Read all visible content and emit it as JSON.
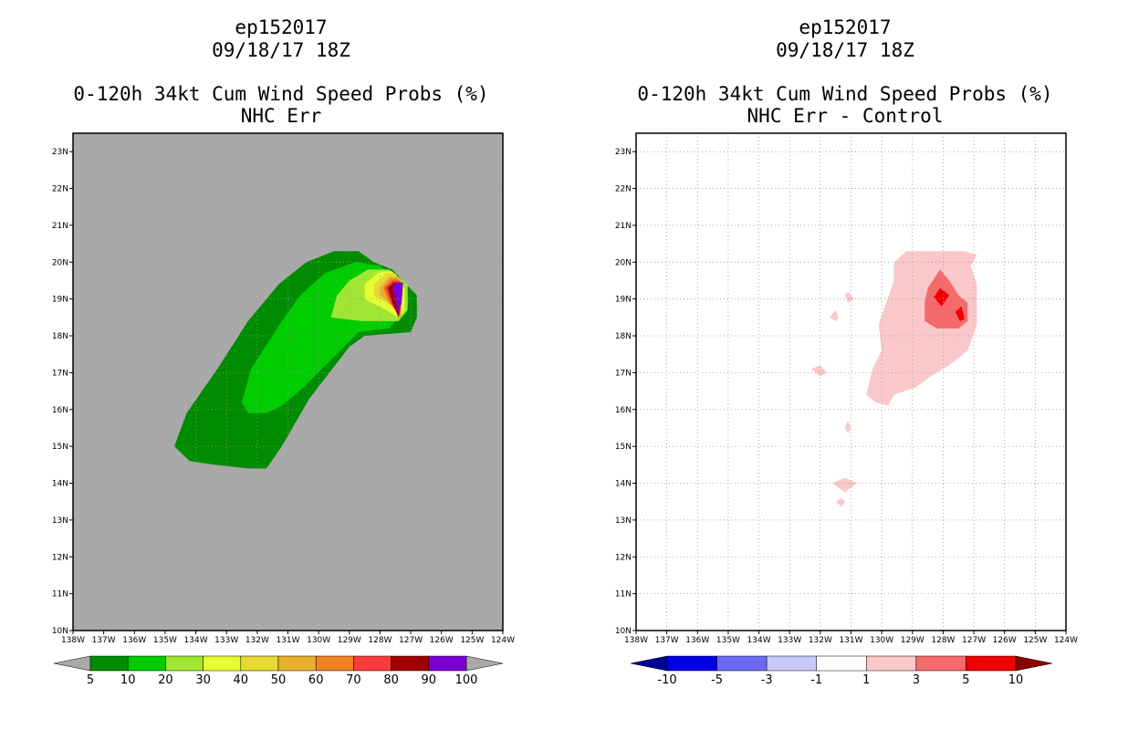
{
  "chart_data": [
    {
      "type": "heatmap",
      "storm_id": "ep152017",
      "datetime": "09/18/17 18Z",
      "title": "0-120h 34kt Cum Wind Speed Probs (%)",
      "subtitle": "NHC Err",
      "xlim": [
        -138,
        -124
      ],
      "ylim": [
        10,
        23.5
      ],
      "x_ticks": [
        "138W",
        "137W",
        "136W",
        "135W",
        "134W",
        "133W",
        "132W",
        "131W",
        "130W",
        "129W",
        "128W",
        "127W",
        "126W",
        "125W",
        "124W"
      ],
      "y_ticks": [
        "10N",
        "11N",
        "12N",
        "13N",
        "14N",
        "15N",
        "16N",
        "17N",
        "18N",
        "19N",
        "20N",
        "21N",
        "22N",
        "23N"
      ],
      "background": "#a9a9a9",
      "grid": true,
      "colorbar": {
        "labels": [
          "5",
          "10",
          "20",
          "30",
          "40",
          "50",
          "60",
          "70",
          "80",
          "90",
          "100"
        ],
        "colors": [
          "#008c00",
          "#00cc00",
          "#a0e632",
          "#e6ff33",
          "#e6d933",
          "#e6af2d",
          "#f08228",
          "#fa3c3c",
          "#a00000",
          "#7a00d4"
        ],
        "under": "#a9a9a9",
        "over": "#a9a9a9"
      },
      "contours": [
        {
          "level": 5,
          "color": "#008c00",
          "points": [
            [
              -134.7,
              15.0
            ],
            [
              -134.3,
              15.9
            ],
            [
              -133.3,
              17.1
            ],
            [
              -132.3,
              18.4
            ],
            [
              -131.3,
              19.4
            ],
            [
              -130.4,
              20.0
            ],
            [
              -129.5,
              20.3
            ],
            [
              -128.7,
              20.3
            ],
            [
              -128.2,
              20.0
            ],
            [
              -127.6,
              19.8
            ],
            [
              -126.8,
              19.1
            ],
            [
              -126.8,
              18.5
            ],
            [
              -127.0,
              18.1
            ],
            [
              -128.5,
              18.0
            ],
            [
              -129.0,
              17.7
            ],
            [
              -130.3,
              16.3
            ],
            [
              -131.2,
              15.0
            ],
            [
              -131.7,
              14.4
            ],
            [
              -132.3,
              14.4
            ],
            [
              -133.4,
              14.5
            ],
            [
              -134.2,
              14.6
            ]
          ]
        },
        {
          "level": 10,
          "color": "#00cc00",
          "points": [
            [
              -132.5,
              16.2
            ],
            [
              -132.2,
              17.1
            ],
            [
              -131.2,
              18.4
            ],
            [
              -130.6,
              19.1
            ],
            [
              -129.8,
              19.7
            ],
            [
              -128.8,
              20.0
            ],
            [
              -128.0,
              19.9
            ],
            [
              -127.3,
              19.4
            ],
            [
              -127.2,
              18.7
            ],
            [
              -127.7,
              18.2
            ],
            [
              -128.7,
              18.1
            ],
            [
              -129.3,
              17.6
            ],
            [
              -130.5,
              16.6
            ],
            [
              -131.2,
              16.1
            ],
            [
              -131.7,
              15.9
            ],
            [
              -132.3,
              15.9
            ]
          ]
        },
        {
          "level": 20,
          "color": "#a0e632",
          "points": [
            [
              -129.6,
              18.5
            ],
            [
              -129.4,
              19.1
            ],
            [
              -129.0,
              19.5
            ],
            [
              -128.4,
              19.8
            ],
            [
              -127.7,
              19.8
            ],
            [
              -127.1,
              19.4
            ],
            [
              -127.1,
              18.7
            ],
            [
              -127.4,
              18.4
            ],
            [
              -128.6,
              18.4
            ]
          ]
        },
        {
          "level": 30,
          "color": "#e6ff33",
          "points": [
            [
              -128.5,
              19.4
            ],
            [
              -128.0,
              19.75
            ],
            [
              -127.6,
              19.75
            ],
            [
              -127.2,
              19.3
            ],
            [
              -127.2,
              18.7
            ],
            [
              -127.4,
              18.5
            ],
            [
              -127.8,
              18.7
            ],
            [
              -128.5,
              19.0
            ]
          ]
        },
        {
          "level": 40,
          "color": "#e6d933",
          "points": [
            [
              -128.2,
              19.4
            ],
            [
              -127.8,
              19.7
            ],
            [
              -127.5,
              19.7
            ],
            [
              -127.25,
              19.3
            ],
            [
              -127.3,
              18.6
            ],
            [
              -127.6,
              18.8
            ],
            [
              -128.2,
              19.1
            ]
          ]
        },
        {
          "level": 50,
          "color": "#e6af2d",
          "points": [
            [
              -128.0,
              19.3
            ],
            [
              -127.7,
              19.6
            ],
            [
              -127.45,
              19.6
            ],
            [
              -127.3,
              19.2
            ],
            [
              -127.35,
              18.6
            ],
            [
              -127.7,
              18.9
            ],
            [
              -128.0,
              19.1
            ]
          ]
        },
        {
          "level": 60,
          "color": "#f08228",
          "points": [
            [
              -127.9,
              19.3
            ],
            [
              -127.65,
              19.55
            ],
            [
              -127.4,
              19.55
            ],
            [
              -127.3,
              19.15
            ],
            [
              -127.35,
              18.55
            ],
            [
              -127.7,
              18.9
            ]
          ]
        },
        {
          "level": 70,
          "color": "#fa3c3c",
          "points": [
            [
              -127.85,
              19.3
            ],
            [
              -127.6,
              19.5
            ],
            [
              -127.35,
              19.5
            ],
            [
              -127.3,
              19.1
            ],
            [
              -127.35,
              18.5
            ],
            [
              -127.65,
              18.9
            ]
          ]
        },
        {
          "level": 80,
          "color": "#a00000",
          "points": [
            [
              -127.75,
              19.3
            ],
            [
              -127.55,
              19.45
            ],
            [
              -127.3,
              19.45
            ],
            [
              -127.3,
              19.0
            ],
            [
              -127.4,
              18.5
            ],
            [
              -127.6,
              18.9
            ]
          ]
        },
        {
          "level": 90,
          "color": "#7a00d4",
          "points": [
            [
              -127.6,
              19.3
            ],
            [
              -127.5,
              19.45
            ],
            [
              -127.25,
              19.45
            ],
            [
              -127.3,
              18.9
            ],
            [
              -127.4,
              18.6
            ],
            [
              -127.5,
              19.0
            ]
          ]
        }
      ]
    },
    {
      "type": "heatmap",
      "storm_id": "ep152017",
      "datetime": "09/18/17 18Z",
      "title": "0-120h 34kt Cum Wind Speed Probs (%)",
      "subtitle": "NHC Err - Control",
      "xlim": [
        -138,
        -124
      ],
      "ylim": [
        10,
        23.5
      ],
      "x_ticks": [
        "138W",
        "137W",
        "136W",
        "135W",
        "134W",
        "133W",
        "132W",
        "131W",
        "130W",
        "129W",
        "128W",
        "127W",
        "126W",
        "125W",
        "124W"
      ],
      "y_ticks": [
        "10N",
        "11N",
        "12N",
        "13N",
        "14N",
        "15N",
        "16N",
        "17N",
        "18N",
        "19N",
        "20N",
        "21N",
        "22N",
        "23N"
      ],
      "background": "#ffffff",
      "grid": true,
      "colorbar": {
        "labels": [
          "-10",
          "-5",
          "-3",
          "-1",
          "1",
          "3",
          "5",
          "10"
        ],
        "colors": [
          "#0000e6",
          "#6a6af0",
          "#c8c8fa",
          "#ffffff",
          "#fac8c8",
          "#f56a6a",
          "#f00000"
        ],
        "under": "#000096",
        "over": "#8c0000"
      },
      "contours": [
        {
          "level": 1,
          "color": "#fac8c8",
          "points": [
            [
              -130.5,
              16.4
            ],
            [
              -130.3,
              17.1
            ],
            [
              -130.0,
              17.6
            ],
            [
              -130.1,
              18.3
            ],
            [
              -129.9,
              18.8
            ],
            [
              -129.6,
              19.5
            ],
            [
              -129.6,
              20.0
            ],
            [
              -129.2,
              20.3
            ],
            [
              -128.2,
              20.3
            ],
            [
              -127.3,
              20.3
            ],
            [
              -126.9,
              20.2
            ],
            [
              -127.1,
              19.9
            ],
            [
              -126.9,
              19.4
            ],
            [
              -126.9,
              18.3
            ],
            [
              -127.2,
              17.6
            ],
            [
              -127.8,
              17.2
            ],
            [
              -128.4,
              16.9
            ],
            [
              -128.9,
              16.6
            ],
            [
              -129.6,
              16.4
            ],
            [
              -129.8,
              16.1
            ],
            [
              -130.2,
              16.2
            ]
          ]
        },
        {
          "level": 1,
          "color": "#fac8c8",
          "points": [
            [
              -132.3,
              17.1
            ],
            [
              -132.0,
              17.2
            ],
            [
              -131.8,
              17.0
            ],
            [
              -132.0,
              16.9
            ]
          ]
        },
        {
          "level": 1,
          "color": "#fac8c8",
          "points": [
            [
              -131.7,
              18.5
            ],
            [
              -131.5,
              18.7
            ],
            [
              -131.4,
              18.5
            ],
            [
              -131.5,
              18.4
            ]
          ]
        },
        {
          "level": 1,
          "color": "#fac8c8",
          "points": [
            [
              -131.2,
              19.1
            ],
            [
              -131.1,
              19.2
            ],
            [
              -130.9,
              19.0
            ],
            [
              -131.1,
              18.9
            ]
          ]
        },
        {
          "level": 1,
          "color": "#fac8c8",
          "points": [
            [
              -131.2,
              15.5
            ],
            [
              -131.1,
              15.7
            ],
            [
              -131.0,
              15.5
            ],
            [
              -131.1,
              15.35
            ]
          ]
        },
        {
          "level": 1,
          "color": "#fac8c8",
          "points": [
            [
              -131.6,
              14.0
            ],
            [
              -131.2,
              14.15
            ],
            [
              -130.8,
              14.0
            ],
            [
              -131.2,
              13.75
            ]
          ]
        },
        {
          "level": 1,
          "color": "#fac8c8",
          "points": [
            [
              -131.5,
              13.5
            ],
            [
              -131.3,
              13.6
            ],
            [
              -131.2,
              13.5
            ],
            [
              -131.3,
              13.35
            ]
          ]
        },
        {
          "level": 3,
          "color": "#f56a6a",
          "points": [
            [
              -128.6,
              18.9
            ],
            [
              -128.5,
              19.3
            ],
            [
              -128.1,
              19.8
            ],
            [
              -127.8,
              19.5
            ],
            [
              -127.5,
              19.1
            ],
            [
              -127.2,
              18.9
            ],
            [
              -127.2,
              18.4
            ],
            [
              -127.5,
              18.2
            ],
            [
              -128.2,
              18.2
            ],
            [
              -128.6,
              18.4
            ]
          ]
        },
        {
          "level": 5,
          "color": "#f00000",
          "points": [
            [
              -128.3,
              19.05
            ],
            [
              -128.1,
              19.3
            ],
            [
              -127.8,
              19.1
            ],
            [
              -128.05,
              18.8
            ]
          ]
        },
        {
          "level": 5,
          "color": "#f00000",
          "points": [
            [
              -127.6,
              18.65
            ],
            [
              -127.4,
              18.8
            ],
            [
              -127.3,
              18.45
            ],
            [
              -127.45,
              18.4
            ]
          ]
        }
      ]
    }
  ]
}
